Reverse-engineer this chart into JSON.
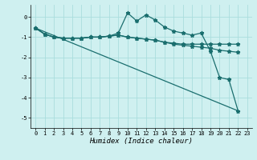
{
  "title": "",
  "xlabel": "Humidex (Indice chaleur)",
  "background_color": "#cff0f0",
  "grid_color": "#aadddd",
  "line_color": "#1a6e6e",
  "xlim": [
    -0.5,
    23.5
  ],
  "ylim": [
    -5.5,
    0.6
  ],
  "yticks": [
    0,
    -1,
    -2,
    -3,
    -4,
    -5
  ],
  "xticks": [
    0,
    1,
    2,
    3,
    4,
    5,
    6,
    7,
    8,
    9,
    10,
    11,
    12,
    13,
    14,
    15,
    16,
    17,
    18,
    19,
    20,
    21,
    22,
    23
  ],
  "series": [
    {
      "x": [
        0,
        1,
        2,
        3,
        4,
        5,
        6,
        7,
        8,
        9,
        10,
        11,
        12,
        13,
        14,
        15,
        16,
        17,
        18,
        19,
        20,
        21,
        22
      ],
      "y": [
        -0.55,
        -0.85,
        -1.0,
        -1.05,
        -1.05,
        -1.05,
        -1.0,
        -1.0,
        -0.95,
        -0.8,
        0.2,
        -0.2,
        0.1,
        -0.15,
        -0.5,
        -0.7,
        -0.8,
        -0.9,
        -0.8,
        -1.7,
        -3.0,
        -3.1,
        -4.65
      ],
      "marker": true
    },
    {
      "x": [
        0,
        1,
        2,
        3,
        4,
        5,
        6,
        7,
        8,
        9,
        10,
        11,
        12,
        13,
        14,
        15,
        16,
        17,
        18,
        19,
        20,
        21,
        22
      ],
      "y": [
        -0.55,
        -0.85,
        -1.0,
        -1.05,
        -1.05,
        -1.05,
        -1.0,
        -1.0,
        -0.95,
        -0.9,
        -1.0,
        -1.05,
        -1.1,
        -1.15,
        -1.25,
        -1.35,
        -1.4,
        -1.45,
        -1.5,
        -1.55,
        -1.65,
        -1.7,
        -1.75
      ],
      "marker": true
    },
    {
      "x": [
        0,
        1,
        2,
        3,
        4,
        5,
        6,
        7,
        8,
        9,
        10,
        11,
        12,
        13,
        14,
        15,
        16,
        17,
        18,
        19,
        20,
        21,
        22
      ],
      "y": [
        -0.55,
        -0.85,
        -1.0,
        -1.05,
        -1.05,
        -1.05,
        -1.0,
        -1.0,
        -0.95,
        -0.9,
        -1.0,
        -1.05,
        -1.1,
        -1.15,
        -1.25,
        -1.3,
        -1.35,
        -1.35,
        -1.35,
        -1.35,
        -1.35,
        -1.35,
        -1.35
      ],
      "marker": true
    },
    {
      "x": [
        0,
        22
      ],
      "y": [
        -0.55,
        -4.65
      ],
      "marker": false
    }
  ],
  "markersize": 3.5,
  "linewidth": 0.9,
  "xlabel_fontsize": 6.5,
  "tick_fontsize": 5.0
}
